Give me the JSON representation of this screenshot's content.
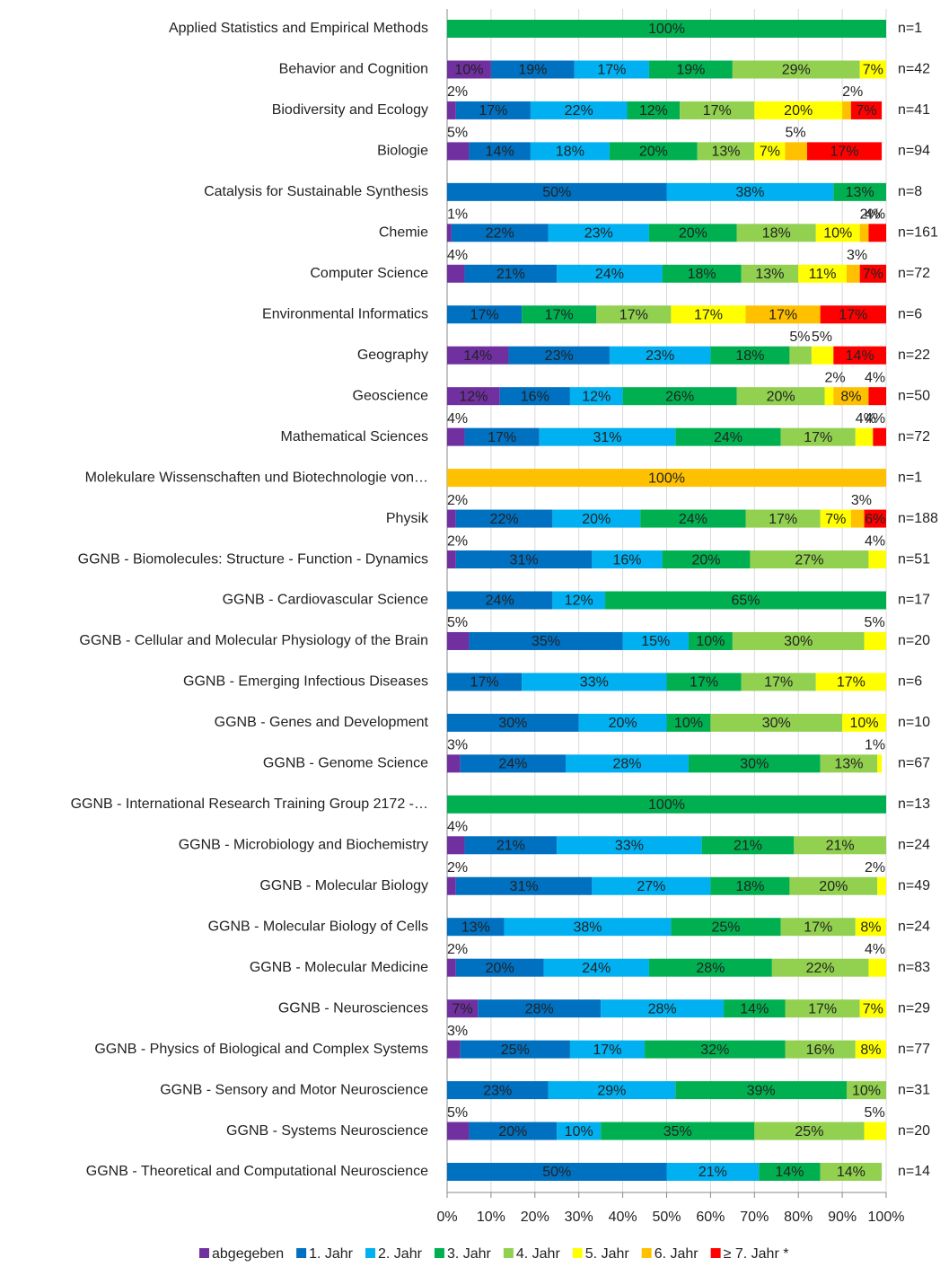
{
  "chart_data": {
    "type": "stacked-bar-horizontal",
    "categories": [
      "Applied Statistics and Empirical Methods",
      "Behavior and Cognition",
      "Biodiversity and Ecology",
      "Biologie",
      "Catalysis for Sustainable Synthesis",
      "Chemie",
      "Computer Science",
      "Environmental Informatics",
      "Geography",
      "Geoscience",
      "Mathematical Sciences",
      "Molekulare Wissenschaften und Biotechnologie von…",
      "Physik",
      "GGNB - Biomolecules: Structure - Function - Dynamics",
      "GGNB - Cardiovascular Science",
      "GGNB - Cellular and Molecular Physiology of the Brain",
      "GGNB - Emerging Infectious Diseases",
      "GGNB - Genes and Development",
      "GGNB - Genome Science",
      "GGNB - International Research Training Group 2172 -…",
      "GGNB - Microbiology and Biochemistry",
      "GGNB - Molecular Biology",
      "GGNB - Molecular Biology of Cells",
      "GGNB - Molecular Medicine",
      "GGNB - Neurosciences",
      "GGNB - Physics of Biological and Complex Systems",
      "GGNB - Sensory and Motor Neuroscience",
      "GGNB - Systems Neuroscience",
      "GGNB - Theoretical and Computational Neuroscience"
    ],
    "n_labels": [
      "n=1",
      "n=42",
      "n=41",
      "n=94",
      "n=8",
      "n=161",
      "n=72",
      "n=6",
      "n=22",
      "n=50",
      "n=72",
      "n=1",
      "n=188",
      "n=51",
      "n=17",
      "n=20",
      "n=6",
      "n=10",
      "n=67",
      "n=13",
      "n=24",
      "n=49",
      "n=24",
      "n=83",
      "n=29",
      "n=77",
      "n=31",
      "n=20",
      "n=14"
    ],
    "series": [
      {
        "name": "abgegeben",
        "color": "#7030a0",
        "values": [
          null,
          10,
          2,
          5,
          null,
          1,
          4,
          null,
          14,
          12,
          4,
          null,
          2,
          2,
          null,
          5,
          null,
          null,
          3,
          null,
          4,
          2,
          null,
          2,
          7,
          3,
          null,
          5,
          null
        ],
        "value_labels": [
          null,
          "10%",
          "2%",
          "5%",
          null,
          "1%",
          "4%",
          null,
          "14%",
          "12%",
          "4%",
          null,
          "2%",
          "2%",
          null,
          "5%",
          null,
          null,
          "3%",
          null,
          "4%",
          "2%",
          null,
          "2%",
          "7%",
          "3%",
          null,
          "5%",
          null
        ]
      },
      {
        "name": "1. Jahr",
        "color": "#0070c0",
        "values": [
          null,
          19,
          17,
          14,
          50,
          22,
          21,
          17,
          23,
          16,
          17,
          null,
          22,
          31,
          24,
          35,
          17,
          30,
          24,
          null,
          21,
          31,
          13,
          20,
          28,
          25,
          23,
          20,
          50
        ],
        "value_labels": [
          null,
          "19%",
          "17%",
          "14%",
          "50%",
          "22%",
          "21%",
          "17%",
          "23%",
          "16%",
          "17%",
          null,
          "22%",
          "31%",
          "24%",
          "35%",
          "17%",
          "30%",
          "24%",
          null,
          "21%",
          "31%",
          "13%",
          "20%",
          "28%",
          "25%",
          "23%",
          "20%",
          "50%"
        ]
      },
      {
        "name": "2. Jahr",
        "color": "#00b0f0",
        "values": [
          null,
          17,
          22,
          18,
          38,
          23,
          24,
          null,
          23,
          12,
          31,
          null,
          20,
          16,
          12,
          15,
          33,
          20,
          28,
          null,
          33,
          27,
          38,
          24,
          28,
          17,
          29,
          10,
          21
        ],
        "value_labels": [
          null,
          "17%",
          "22%",
          "18%",
          "38%",
          "23%",
          "24%",
          null,
          "23%",
          "12%",
          "31%",
          null,
          "20%",
          "16%",
          "12%",
          "15%",
          "33%",
          "20%",
          "28%",
          null,
          "33%",
          "27%",
          "38%",
          "24%",
          "28%",
          "17%",
          "29%",
          "10%",
          "21%"
        ]
      },
      {
        "name": "3. Jahr",
        "color": "#00b050",
        "values": [
          100,
          19,
          12,
          20,
          13,
          20,
          18,
          17,
          18,
          26,
          24,
          null,
          24,
          20,
          65,
          10,
          17,
          10,
          30,
          100,
          21,
          18,
          25,
          28,
          14,
          32,
          39,
          35,
          14
        ],
        "value_labels": [
          "100%",
          "19%",
          "12%",
          "20%",
          "13%",
          "20%",
          "18%",
          "17%",
          "18%",
          "26%",
          "24%",
          null,
          "24%",
          "20%",
          "65%",
          "10%",
          "17%",
          "10%",
          "30%",
          "100%",
          "21%",
          "18%",
          "25%",
          "28%",
          "14%",
          "32%",
          "39%",
          "35%",
          "14%"
        ]
      },
      {
        "name": "4. Jahr",
        "color": "#92d050",
        "values": [
          null,
          29,
          17,
          13,
          null,
          18,
          13,
          17,
          5,
          20,
          17,
          null,
          17,
          27,
          null,
          30,
          17,
          30,
          13,
          null,
          21,
          20,
          17,
          22,
          17,
          16,
          10,
          25,
          14
        ],
        "value_labels": [
          null,
          "29%",
          "17%",
          "13%",
          null,
          "18%",
          "13%",
          "17%",
          "5%",
          "20%",
          "17%",
          null,
          "17%",
          "27%",
          null,
          "30%",
          "17%",
          "30%",
          "13%",
          null,
          "21%",
          "20%",
          "17%",
          "22%",
          "17%",
          "16%",
          "10%",
          "25%",
          "14%"
        ]
      },
      {
        "name": "5. Jahr",
        "color": "#ffff00",
        "values": [
          null,
          7,
          20,
          7,
          null,
          10,
          11,
          17,
          5,
          2,
          4,
          null,
          7,
          4,
          null,
          5,
          17,
          10,
          1,
          null,
          null,
          2,
          8,
          4,
          7,
          8,
          null,
          5,
          null
        ],
        "value_labels": [
          null,
          "7%",
          "20%",
          "7%",
          null,
          "10%",
          "11%",
          "17%",
          "5%",
          "2%",
          "4%",
          null,
          "7%",
          "4%",
          null,
          "5%",
          "17%",
          "10%",
          "1%",
          null,
          null,
          "2%",
          "8%",
          "4%",
          "7%",
          "8%",
          null,
          "5%",
          null
        ]
      },
      {
        "name": "6. Jahr",
        "color": "#ffc000",
        "values": [
          null,
          null,
          2,
          5,
          null,
          2,
          3,
          17,
          null,
          8,
          null,
          100,
          3,
          null,
          null,
          null,
          null,
          null,
          null,
          null,
          null,
          null,
          null,
          null,
          null,
          null,
          null,
          null,
          null
        ],
        "value_labels": [
          null,
          null,
          "2%",
          "5%",
          null,
          "2%",
          "3%",
          "17%",
          null,
          "8%",
          null,
          "100%",
          "3%",
          null,
          null,
          null,
          null,
          null,
          null,
          null,
          null,
          null,
          null,
          null,
          null,
          null,
          null,
          null,
          null
        ]
      },
      {
        "name": "≥ 7. Jahr *",
        "color": "#ff0000",
        "values": [
          null,
          null,
          7,
          17,
          null,
          4,
          7,
          17,
          14,
          4,
          4,
          null,
          6,
          null,
          null,
          null,
          null,
          null,
          null,
          null,
          null,
          null,
          null,
          null,
          null,
          null,
          null,
          null,
          null
        ],
        "value_labels": [
          null,
          null,
          "7%",
          "17%",
          null,
          "4%",
          "7%",
          "17%",
          "14%",
          "4%",
          "4%",
          null,
          "6%",
          null,
          null,
          null,
          null,
          null,
          null,
          null,
          null,
          null,
          null,
          null,
          null,
          null,
          null,
          null,
          null
        ]
      }
    ],
    "xlim": [
      0,
      100
    ],
    "xticks": [
      {
        "value": 0,
        "label": "0%"
      },
      {
        "value": 10,
        "label": "10%"
      },
      {
        "value": 20,
        "label": "20%"
      },
      {
        "value": 30,
        "label": "30%"
      },
      {
        "value": 40,
        "label": "40%"
      },
      {
        "value": 50,
        "label": "50%"
      },
      {
        "value": 60,
        "label": "60%"
      },
      {
        "value": 70,
        "label": "70%"
      },
      {
        "value": 80,
        "label": "80%"
      },
      {
        "value": 90,
        "label": "90%"
      },
      {
        "value": 100,
        "label": "100%"
      }
    ],
    "grid": true,
    "legend": "bottom"
  }
}
